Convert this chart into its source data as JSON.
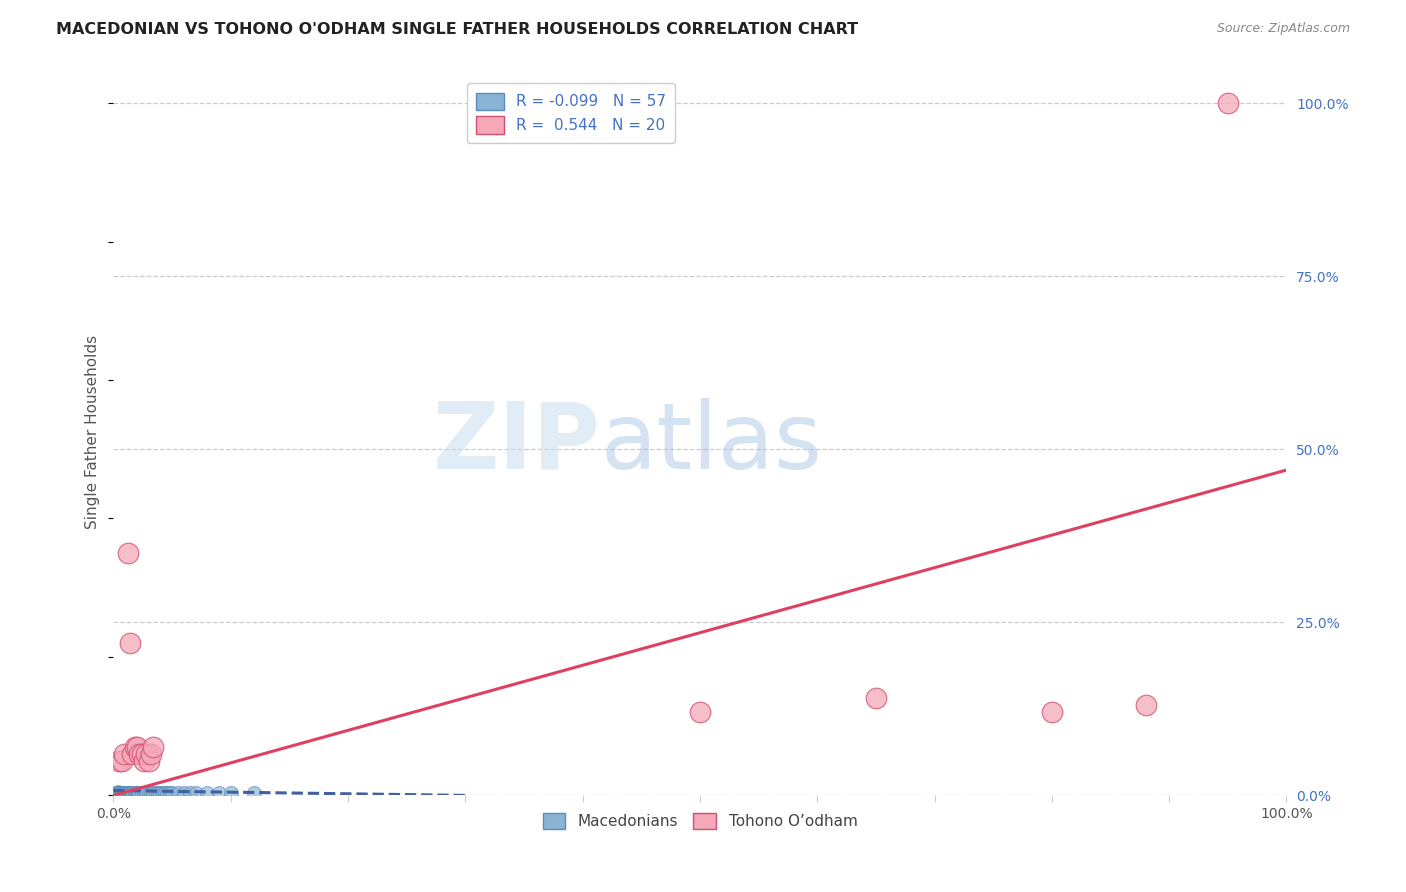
{
  "title": "MACEDONIAN VS TOHONO O'ODHAM SINGLE FATHER HOUSEHOLDS CORRELATION CHART",
  "source": "Source: ZipAtlas.com",
  "ylabel": "Single Father Households",
  "watermark_zip": "ZIP",
  "watermark_atlas": "atlas",
  "xlim": [
    0.0,
    1.0
  ],
  "ylim": [
    0.0,
    1.05
  ],
  "ytick_positions": [
    0.0,
    0.25,
    0.5,
    0.75,
    1.0
  ],
  "xtick_positions": [
    0.0,
    0.1,
    0.2,
    0.3,
    0.4,
    0.5,
    0.6,
    0.7,
    0.8,
    0.9,
    1.0
  ],
  "macedonians_color": "#8ab4d4",
  "macedonians_edge": "#5b8db8",
  "macedonians_line_color": "#4060a0",
  "tohono_color": "#f4a8b8",
  "tohono_edge": "#d05070",
  "tohono_line_color": "#e04060",
  "background_color": "#ffffff",
  "grid_color": "#cccccc",
  "title_color": "#222222",
  "source_color": "#888888",
  "axis_label_color": "#555555",
  "right_axis_color": "#4472c4",
  "legend1_text1": "R = -0.099   N = 57",
  "legend1_text2": "R =  0.544   N = 20",
  "legend2_text1": "Macedonians",
  "legend2_text2": "Tohono O’odham",
  "mac_x": [
    0.002,
    0.003,
    0.003,
    0.004,
    0.004,
    0.005,
    0.005,
    0.005,
    0.006,
    0.006,
    0.007,
    0.007,
    0.007,
    0.008,
    0.008,
    0.009,
    0.009,
    0.01,
    0.01,
    0.011,
    0.011,
    0.012,
    0.012,
    0.013,
    0.013,
    0.014,
    0.015,
    0.015,
    0.016,
    0.017,
    0.018,
    0.019,
    0.02,
    0.021,
    0.022,
    0.024,
    0.026,
    0.028,
    0.03,
    0.032,
    0.034,
    0.036,
    0.038,
    0.04,
    0.042,
    0.044,
    0.046,
    0.048,
    0.05,
    0.055,
    0.06,
    0.065,
    0.07,
    0.08,
    0.09,
    0.1,
    0.12
  ],
  "mac_y": [
    0.003,
    0.002,
    0.004,
    0.003,
    0.005,
    0.002,
    0.003,
    0.004,
    0.003,
    0.004,
    0.002,
    0.003,
    0.004,
    0.003,
    0.003,
    0.002,
    0.003,
    0.003,
    0.004,
    0.003,
    0.003,
    0.002,
    0.004,
    0.003,
    0.003,
    0.003,
    0.002,
    0.004,
    0.003,
    0.003,
    0.003,
    0.003,
    0.003,
    0.004,
    0.003,
    0.003,
    0.003,
    0.003,
    0.002,
    0.003,
    0.003,
    0.004,
    0.003,
    0.003,
    0.003,
    0.003,
    0.003,
    0.003,
    0.003,
    0.003,
    0.003,
    0.003,
    0.003,
    0.003,
    0.003,
    0.003,
    0.003
  ],
  "mac_trend_x": [
    0.0,
    0.3
  ],
  "mac_trend_y": [
    0.007,
    0.0
  ],
  "tohono_x": [
    0.005,
    0.007,
    0.009,
    0.012,
    0.014,
    0.016,
    0.018,
    0.02,
    0.022,
    0.024,
    0.026,
    0.028,
    0.03,
    0.032,
    0.034,
    0.5,
    0.65,
    0.8,
    0.88,
    0.95
  ],
  "tohono_y": [
    0.05,
    0.05,
    0.06,
    0.35,
    0.22,
    0.06,
    0.07,
    0.07,
    0.06,
    0.06,
    0.05,
    0.06,
    0.05,
    0.06,
    0.07,
    0.12,
    0.14,
    0.12,
    0.13,
    1.0
  ],
  "toh_trend_x": [
    0.0,
    1.0
  ],
  "toh_trend_y": [
    0.0,
    0.47
  ]
}
